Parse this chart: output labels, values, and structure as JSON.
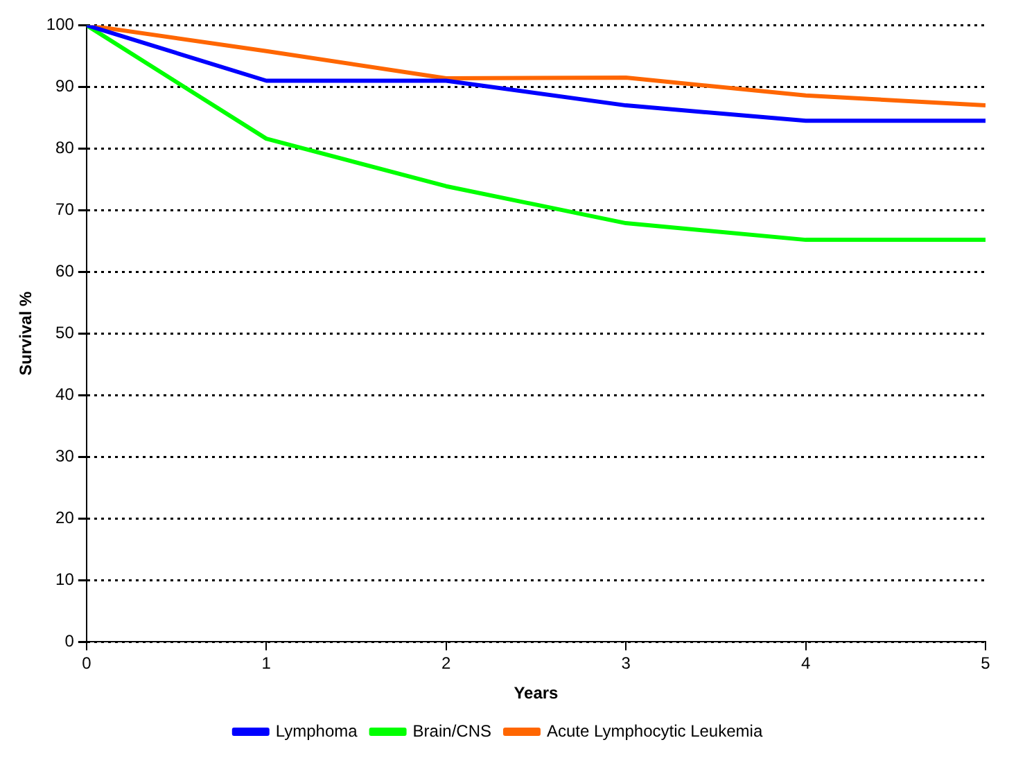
{
  "chart_data": {
    "type": "line",
    "xlabel": "Years",
    "ylabel": "Survival %",
    "x": [
      0,
      1,
      2,
      3,
      4,
      5
    ],
    "xlim": [
      0,
      5
    ],
    "xticks": [
      0,
      1,
      2,
      3,
      4,
      5
    ],
    "ylim": [
      0,
      100
    ],
    "yticks": [
      0,
      10,
      20,
      30,
      40,
      50,
      60,
      70,
      80,
      90,
      100
    ],
    "grid": "y",
    "legend": "bottom",
    "marker": "none",
    "line_style": "solid",
    "series": [
      {
        "name": "Lymphoma",
        "color": "#0000ff",
        "values": [
          100,
          91,
          91,
          87,
          84.5,
          84.5
        ]
      },
      {
        "name": "Brain/CNS",
        "color": "#00ff00",
        "values": [
          100,
          81.6,
          73.9,
          67.9,
          65.2,
          65.2
        ]
      },
      {
        "name": "Acute Lymphocytic Leukemia",
        "color": "#ff6600",
        "values": [
          100,
          95.8,
          91.4,
          91.5,
          88.6,
          87
        ]
      }
    ]
  }
}
